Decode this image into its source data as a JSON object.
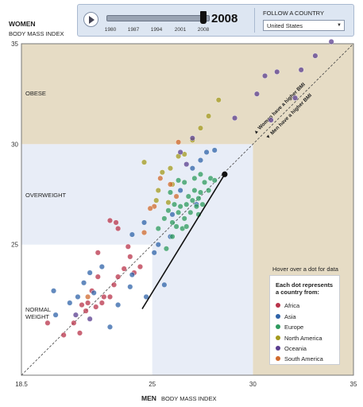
{
  "controls": {
    "play_icon": "play-icon",
    "years": [
      "1980",
      "1987",
      "1994",
      "2001",
      "2008"
    ],
    "current_year": "2008",
    "year_progress": 1.0,
    "follow_label": "FOLLOW A COUNTRY",
    "follow_value": "United States"
  },
  "axes": {
    "y_title": "WOMEN",
    "y_subtitle": "BODY MASS INDEX",
    "x_title": "MEN",
    "x_subtitle": "BODY MASS INDEX"
  },
  "regions": {
    "obese": "OBESE",
    "overweight": "OVERWEIGHT",
    "normal_line1": "NORMAL",
    "normal_line2": "WEIGHT"
  },
  "diagonal": {
    "upper": "▲ Women have a higher BMI",
    "lower": "▼ Men have a higher BMI"
  },
  "hover_hint": "Hover over a dot for data",
  "legend": {
    "title": "Each dot represents a country from:",
    "items": [
      {
        "label": "Africa",
        "color": "#b8334a"
      },
      {
        "label": "Asia",
        "color": "#2f63a8"
      },
      {
        "label": "Europe",
        "color": "#2e9a5e"
      },
      {
        "label": "North America",
        "color": "#a39a1e"
      },
      {
        "label": "Oceania",
        "color": "#5a3d8f"
      },
      {
        "label": "South America",
        "color": "#d06a2e"
      }
    ]
  },
  "colors": {
    "obese_band": "#e6dcc5",
    "overweight_band": "#e8edf7",
    "diagonal": "#444444"
  },
  "chart_data": {
    "type": "scatter",
    "xlabel": "MEN BODY MASS INDEX",
    "ylabel": "WOMEN BODY MASS INDEX",
    "xlim": [
      18.5,
      35
    ],
    "ylim": [
      18.5,
      35
    ],
    "xticks": [
      {
        "value": 18.5,
        "label": "18.5"
      },
      {
        "value": 25,
        "label": "25"
      },
      {
        "value": 30,
        "label": "30"
      },
      {
        "value": 35,
        "label": "35"
      }
    ],
    "yticks": [
      {
        "value": 25,
        "label": "25"
      },
      {
        "value": 30,
        "label": "30"
      },
      {
        "value": 35,
        "label": "35"
      }
    ],
    "highlight": {
      "label": "United States",
      "from": [
        24.5,
        21.8
      ],
      "to": [
        28.6,
        28.5
      ]
    },
    "series": [
      {
        "name": "Africa",
        "color": "#b8334a",
        "points": [
          [
            20.6,
            20.5
          ],
          [
            21.1,
            21.1
          ],
          [
            21.5,
            22.0
          ],
          [
            21.8,
            22.1
          ],
          [
            22.0,
            22.7
          ],
          [
            22.2,
            21.9
          ],
          [
            22.6,
            22.4
          ],
          [
            22.9,
            22.4
          ],
          [
            23.3,
            23.4
          ],
          [
            23.6,
            23.8
          ],
          [
            23.9,
            24.4
          ],
          [
            24.4,
            23.9
          ],
          [
            23.1,
            23.0
          ],
          [
            21.4,
            20.6
          ],
          [
            22.3,
            24.6
          ],
          [
            22.9,
            26.2
          ],
          [
            23.3,
            25.8
          ],
          [
            24.1,
            23.6
          ],
          [
            23.8,
            24.9
          ],
          [
            21.7,
            21.7
          ],
          [
            22.5,
            22.1
          ],
          [
            19.8,
            21.1
          ],
          [
            22.3,
            23.4
          ],
          [
            23.2,
            26.1
          ]
        ]
      },
      {
        "name": "Asia",
        "color": "#2f63a8",
        "points": [
          [
            20.2,
            21.5
          ],
          [
            20.9,
            22.1
          ],
          [
            21.6,
            23.1
          ],
          [
            21.9,
            23.6
          ],
          [
            22.5,
            23.9
          ],
          [
            22.1,
            22.6
          ],
          [
            23.3,
            22.0
          ],
          [
            24.0,
            23.5
          ],
          [
            24.7,
            22.4
          ],
          [
            25.6,
            23.0
          ],
          [
            25.9,
            25.4
          ],
          [
            26.0,
            26.5
          ],
          [
            26.4,
            27.7
          ],
          [
            27.0,
            28.8
          ],
          [
            27.4,
            29.2
          ],
          [
            27.7,
            29.6
          ],
          [
            28.1,
            29.7
          ],
          [
            22.9,
            20.9
          ],
          [
            24.0,
            25.5
          ],
          [
            24.6,
            26.1
          ],
          [
            25.1,
            24.6
          ],
          [
            25.3,
            25.0
          ],
          [
            27.2,
            27.0
          ],
          [
            20.1,
            22.7
          ],
          [
            21.3,
            22.4
          ],
          [
            23.9,
            22.9
          ]
        ]
      },
      {
        "name": "Europe",
        "color": "#2e9a5e",
        "points": [
          [
            25.3,
            25.8
          ],
          [
            25.6,
            26.3
          ],
          [
            25.8,
            26.7
          ],
          [
            26.0,
            26.1
          ],
          [
            26.2,
            25.9
          ],
          [
            26.3,
            26.6
          ],
          [
            26.4,
            26.9
          ],
          [
            26.5,
            25.8
          ],
          [
            26.6,
            26.3
          ],
          [
            26.7,
            27.0
          ],
          [
            26.8,
            27.4
          ],
          [
            26.9,
            26.6
          ],
          [
            27.0,
            27.2
          ],
          [
            27.1,
            27.7
          ],
          [
            27.2,
            26.9
          ],
          [
            27.3,
            27.3
          ],
          [
            27.4,
            27.6
          ],
          [
            27.5,
            27.0
          ],
          [
            27.6,
            28.1
          ],
          [
            27.8,
            27.7
          ],
          [
            27.9,
            28.3
          ],
          [
            26.1,
            27.0
          ],
          [
            25.9,
            27.6
          ],
          [
            26.3,
            28.2
          ],
          [
            27.1,
            28.3
          ],
          [
            28.1,
            28.2
          ],
          [
            27.4,
            28.5
          ],
          [
            26.6,
            28.1
          ],
          [
            26.0,
            25.4
          ],
          [
            25.7,
            24.8
          ],
          [
            26.7,
            25.9
          ],
          [
            27.3,
            26.5
          ]
        ]
      },
      {
        "name": "North America",
        "color": "#a39a1e",
        "points": [
          [
            25.5,
            28.6
          ],
          [
            25.9,
            28.8
          ],
          [
            26.3,
            29.4
          ],
          [
            27.0,
            30.2
          ],
          [
            27.4,
            30.8
          ],
          [
            27.8,
            31.4
          ],
          [
            28.3,
            32.2
          ],
          [
            25.3,
            27.7
          ],
          [
            25.2,
            27.2
          ],
          [
            25.8,
            27.1
          ],
          [
            26.0,
            28.0
          ],
          [
            24.6,
            29.1
          ],
          [
            26.6,
            29.5
          ]
        ]
      },
      {
        "name": "Oceania",
        "color": "#5a3d8f",
        "points": [
          [
            30.6,
            33.4
          ],
          [
            31.2,
            33.6
          ],
          [
            32.4,
            33.7
          ],
          [
            33.1,
            34.4
          ],
          [
            33.9,
            35.1
          ],
          [
            32.1,
            32.3
          ],
          [
            30.9,
            31.2
          ],
          [
            30.2,
            32.5
          ],
          [
            29.1,
            31.3
          ],
          [
            27.0,
            30.3
          ],
          [
            26.7,
            29.0
          ],
          [
            26.4,
            29.6
          ],
          [
            21.2,
            21.5
          ],
          [
            21.9,
            21.3
          ]
        ]
      },
      {
        "name": "South America",
        "color": "#d06a2e",
        "points": [
          [
            25.4,
            28.3
          ],
          [
            25.9,
            28.0
          ],
          [
            26.2,
            27.4
          ],
          [
            25.1,
            26.9
          ],
          [
            26.3,
            30.1
          ],
          [
            21.8,
            22.4
          ],
          [
            24.6,
            25.6
          ],
          [
            24.9,
            26.8
          ]
        ]
      }
    ]
  }
}
